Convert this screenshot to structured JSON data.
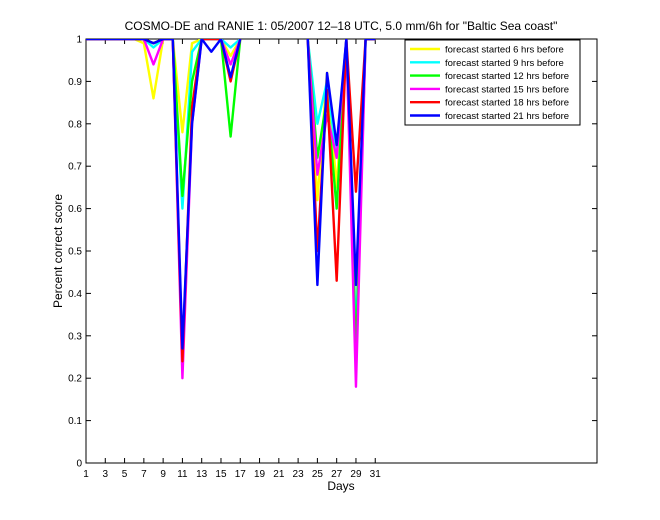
{
  "chart_data": {
    "type": "line",
    "title": "COSMO-DE and RANIE 1: 05/2007 12–18 UTC, 5.0 mm/6h for \"Baltic Sea coast\"",
    "xlabel": "Days",
    "ylabel": "Percent correct score",
    "xlim": [
      1,
      54
    ],
    "ylim": [
      0,
      1
    ],
    "xticks": [
      1,
      3,
      5,
      7,
      9,
      11,
      13,
      15,
      17,
      19,
      21,
      23,
      25,
      27,
      29,
      31
    ],
    "yticks": [
      0,
      0.1,
      0.2,
      0.3,
      0.4,
      0.5,
      0.6,
      0.7,
      0.8,
      0.9,
      1
    ],
    "legend": "top-right",
    "x": [
      1,
      2,
      3,
      4,
      5,
      6,
      7,
      8,
      9,
      10,
      11,
      12,
      13,
      14,
      15,
      16,
      17,
      18,
      19,
      20,
      21,
      22,
      23,
      24,
      25,
      26,
      27,
      28,
      29,
      30,
      31
    ],
    "series": [
      {
        "name": "forecast started 6 hrs before",
        "color": "#ffff00",
        "values": [
          1,
          1,
          1,
          1,
          1,
          1,
          0.99,
          0.86,
          1,
          1,
          0.78,
          0.99,
          1,
          1,
          1,
          0.96,
          1,
          null,
          null,
          null,
          null,
          null,
          null,
          1,
          0.62,
          0.92,
          0.65,
          1,
          0.32,
          1,
          1
        ]
      },
      {
        "name": "forecast started 9 hrs before",
        "color": "#00ffff",
        "values": [
          1,
          1,
          1,
          1,
          1,
          1,
          1,
          0.98,
          1,
          1,
          0.6,
          0.97,
          1,
          1,
          1,
          0.98,
          1,
          null,
          null,
          null,
          null,
          null,
          null,
          1,
          0.8,
          0.9,
          0.72,
          1,
          0.3,
          1,
          1
        ]
      },
      {
        "name": "forecast started 12 hrs before",
        "color": "#00ff00",
        "values": [
          1,
          1,
          1,
          1,
          1,
          1,
          1,
          0.99,
          1,
          1,
          0.63,
          0.9,
          1,
          1,
          1,
          0.77,
          1,
          null,
          null,
          null,
          null,
          null,
          null,
          1,
          0.72,
          0.86,
          0.6,
          1,
          0.25,
          1,
          1
        ]
      },
      {
        "name": "forecast started 15 hrs before",
        "color": "#ff00ff",
        "values": [
          1,
          1,
          1,
          1,
          1,
          1,
          1,
          0.94,
          1,
          1,
          0.2,
          0.8,
          1,
          1,
          1,
          0.94,
          1,
          null,
          null,
          null,
          null,
          null,
          null,
          1,
          0.68,
          0.82,
          0.72,
          1,
          0.18,
          1,
          1
        ]
      },
      {
        "name": "forecast started 18 hrs before",
        "color": "#ff0000",
        "values": [
          1,
          1,
          1,
          1,
          1,
          1,
          1,
          0.99,
          1,
          1,
          0.24,
          0.84,
          1,
          1,
          1,
          0.9,
          1,
          null,
          null,
          null,
          null,
          null,
          null,
          1,
          0.5,
          0.88,
          0.43,
          1,
          0.64,
          1,
          1
        ]
      },
      {
        "name": "forecast started 21 hrs before",
        "color": "#0000ff",
        "values": [
          1,
          1,
          1,
          1,
          1,
          1,
          1,
          0.99,
          1,
          1,
          0.27,
          0.8,
          1,
          0.97,
          1,
          0.91,
          1,
          null,
          null,
          null,
          null,
          null,
          null,
          1,
          0.42,
          0.92,
          0.75,
          1,
          0.42,
          1,
          1
        ]
      }
    ]
  }
}
